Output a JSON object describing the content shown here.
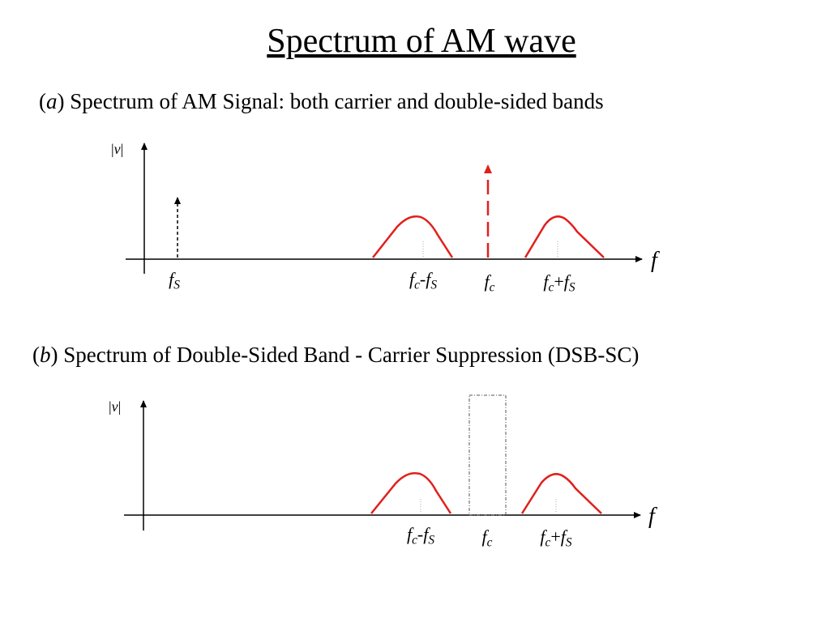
{
  "title": "Spectrum of AM wave",
  "panels": [
    {
      "caption": [
        {
          "text": "(",
          "style": "n"
        },
        {
          "text": "a",
          "style": "i"
        },
        {
          "text": ") Spectrum of AM Signal: both carrier and double-sided bands",
          "style": "n"
        }
      ],
      "y_axis_label": [
        {
          "text": "|",
          "style": "n"
        },
        {
          "text": "v",
          "style": "i"
        },
        {
          "text": "|",
          "style": "n"
        }
      ],
      "x_axis_label": "f",
      "labels": [
        [
          {
            "text": "f",
            "style": "i"
          },
          {
            "text": "S",
            "style": "sub"
          }
        ],
        [
          {
            "text": "f",
            "style": "i"
          },
          {
            "text": "c",
            "style": "sub"
          },
          {
            "text": "-",
            "style": "n"
          },
          {
            "text": "f",
            "style": "i"
          },
          {
            "text": "S",
            "style": "sub"
          }
        ],
        [
          {
            "text": "f",
            "style": "i"
          },
          {
            "text": "c",
            "style": "sub"
          }
        ],
        [
          {
            "text": "f",
            "style": "i"
          },
          {
            "text": "c",
            "style": "sub"
          },
          {
            "text": "+",
            "style": "n"
          },
          {
            "text": "f",
            "style": "i"
          },
          {
            "text": "S",
            "style": "sub"
          }
        ]
      ]
    },
    {
      "caption": [
        {
          "text": "(",
          "style": "n"
        },
        {
          "text": "b",
          "style": "i"
        },
        {
          "text": ") Spectrum of Double-Sided Band - Carrier Suppression (DSB-SC)",
          "style": "n"
        }
      ],
      "y_axis_label": [
        {
          "text": "|",
          "style": "n"
        },
        {
          "text": "v",
          "style": "i"
        },
        {
          "text": "|",
          "style": "n"
        }
      ],
      "x_axis_label": "f",
      "labels": [
        [
          {
            "text": "f",
            "style": "i"
          },
          {
            "text": "c",
            "style": "sub"
          },
          {
            "text": "-",
            "style": "n"
          },
          {
            "text": "f",
            "style": "i"
          },
          {
            "text": "S",
            "style": "sub"
          }
        ],
        [
          {
            "text": "f",
            "style": "i"
          },
          {
            "text": "c",
            "style": "sub"
          }
        ],
        [
          {
            "text": "f",
            "style": "i"
          },
          {
            "text": "c",
            "style": "sub"
          },
          {
            "text": "+",
            "style": "n"
          },
          {
            "text": "f",
            "style": "i"
          },
          {
            "text": "S",
            "style": "sub"
          }
        ]
      ]
    }
  ]
}
